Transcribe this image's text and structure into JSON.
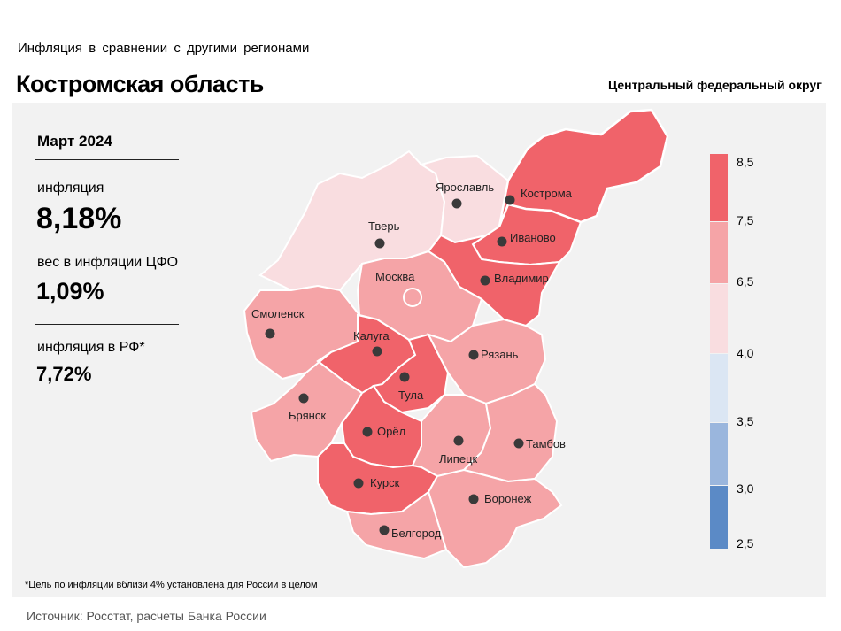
{
  "header": {
    "subtitle": "Инфляция  в сравнении  с другими  регионами",
    "title": "Костромская область",
    "district": "Центральный федеральный округ"
  },
  "stats": {
    "period": "Март 2024",
    "inflation_label": "инфляция",
    "inflation_value": "8,18%",
    "weight_label": "вес в инфляции  ЦФО",
    "weight_value": "1,09%",
    "rf_label": "инфляция  в РФ*",
    "rf_value": "7,72%"
  },
  "legend": {
    "ticks": [
      "8,5",
      "7,5",
      "6,5",
      "4,0",
      "3,5",
      "3,0",
      "2,5"
    ],
    "colors": [
      "#f0636a",
      "#f5a4a7",
      "#f9dde0",
      "#dbe6f3",
      "#9ab6dd",
      "#5b8ac6"
    ]
  },
  "regions": {
    "tver": "Тверь",
    "yaroslavl": "Ярославль",
    "kostroma": "Кострома",
    "ivanovo": "Иваново",
    "vladimir": "Владимир",
    "moscow": "Москва",
    "smolensk": "Смоленск",
    "kaluga": "Калуга",
    "tula": "Тула",
    "ryazan": "Рязань",
    "bryansk": "Брянск",
    "orel": "Орёл",
    "lipetsk": "Липецк",
    "tambov": "Тамбов",
    "kursk": "Курск",
    "voronezh": "Воронеж",
    "belgorod": "Белгород"
  },
  "footnote": "*Цель по инфляции вблизи 4% установлена для России в целом",
  "source": "Источник: Росстат, расчеты Банка России"
}
